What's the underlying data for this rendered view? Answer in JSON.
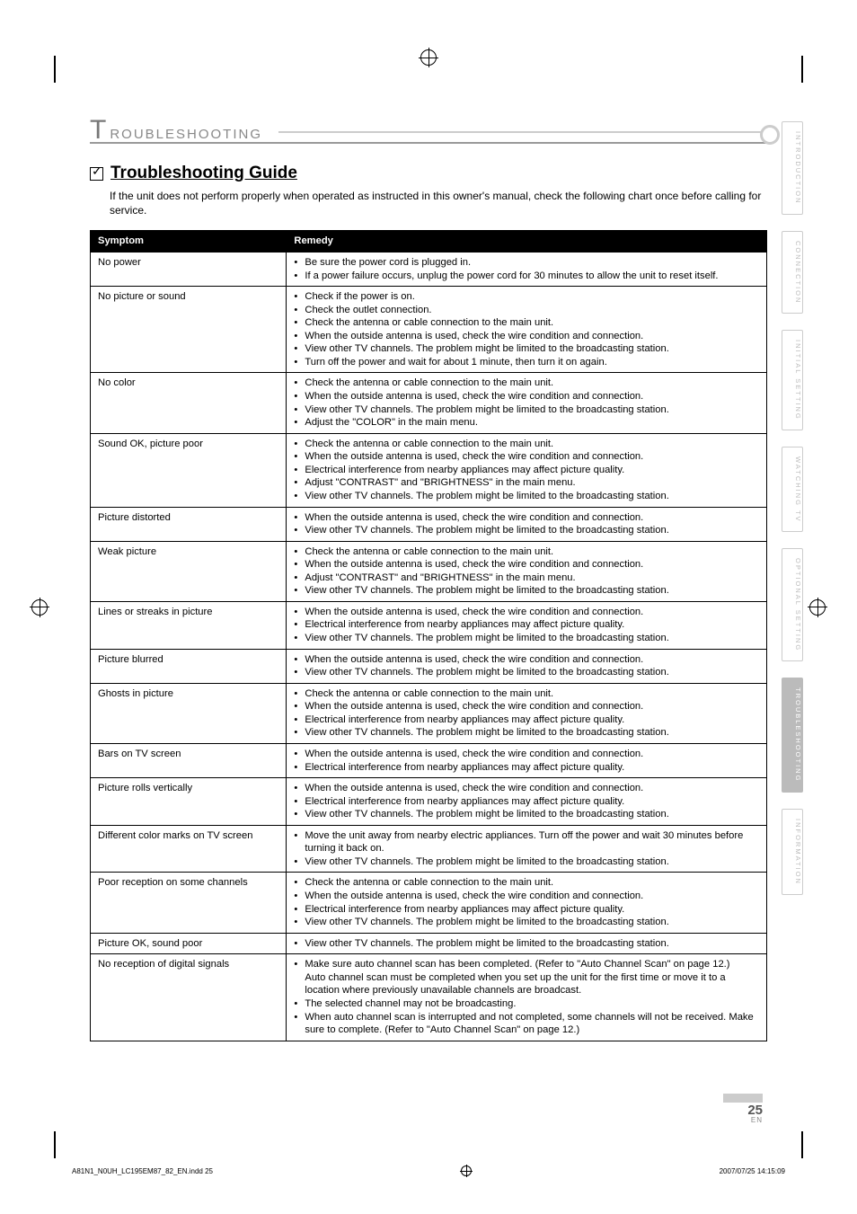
{
  "section_heading_first_letter": "T",
  "section_heading_rest": "ROUBLESHOOTING",
  "sub_heading": "Troubleshooting Guide",
  "intro": "If the unit does not perform properly when operated as instructed in this owner's manual, check the following chart once before calling for service.",
  "columns": {
    "symptom": "Symptom",
    "remedy": "Remedy"
  },
  "rows": [
    {
      "symptom": "No power",
      "remedy": [
        "Be sure the power cord is plugged in.",
        "If a power failure occurs, unplug the power cord for 30 minutes to allow the unit to reset itself."
      ]
    },
    {
      "symptom": "No picture or sound",
      "remedy": [
        "Check if the power is on.",
        "Check the outlet connection.",
        "Check the antenna or cable connection to the main unit.",
        "When the outside antenna is used, check the wire condition and connection.",
        "View other TV channels. The problem might be limited to the broadcasting station.",
        "Turn off the power and wait for about 1 minute, then turn it on again."
      ]
    },
    {
      "symptom": "No color",
      "remedy": [
        "Check the antenna or cable connection to the main unit.",
        "When the outside antenna is used, check the wire condition and connection.",
        "View other TV channels. The problem might be limited to the broadcasting station.",
        "Adjust the \"COLOR\" in the main menu."
      ]
    },
    {
      "symptom": "Sound OK, picture poor",
      "remedy": [
        "Check the antenna or cable connection to the main unit.",
        "When the outside antenna is used, check the wire condition and connection.",
        "Electrical interference from nearby appliances may affect picture quality.",
        "Adjust \"CONTRAST\" and \"BRIGHTNESS\" in the main menu.",
        "View other TV channels. The problem might be limited to the broadcasting station."
      ]
    },
    {
      "symptom": "Picture distorted",
      "remedy": [
        "When the outside antenna is used, check the wire condition and connection.",
        "View other TV channels. The problem might be limited to the broadcasting station."
      ]
    },
    {
      "symptom": "Weak picture",
      "remedy": [
        "Check the antenna or cable connection to the main unit.",
        "When the outside antenna is used, check the wire condition and connection.",
        "Adjust \"CONTRAST\" and \"BRIGHTNESS\" in the main menu.",
        "View other TV channels. The problem might be limited to the broadcasting station."
      ]
    },
    {
      "symptom": "Lines or streaks in picture",
      "remedy": [
        "When the outside antenna is used, check the wire condition and connection.",
        "Electrical interference from nearby appliances may affect picture quality.",
        "View other TV channels. The problem might be limited to the broadcasting station."
      ]
    },
    {
      "symptom": "Picture blurred",
      "remedy": [
        "When the outside antenna is used, check the wire condition and connection.",
        "View other TV channels. The problem might be limited to the broadcasting station."
      ]
    },
    {
      "symptom": "Ghosts in picture",
      "remedy": [
        "Check the antenna or cable connection to the main unit.",
        "When the outside antenna is used, check the wire condition and connection.",
        "Electrical interference from nearby appliances may affect picture quality.",
        "View other TV channels. The problem might be limited to the broadcasting station."
      ]
    },
    {
      "symptom": "Bars on TV screen",
      "remedy": [
        "When the outside antenna is used, check the wire condition and connection.",
        "Electrical interference from nearby appliances may affect picture quality."
      ]
    },
    {
      "symptom": "Picture rolls vertically",
      "remedy": [
        "When the outside antenna is used, check the wire condition and connection.",
        "Electrical interference from nearby appliances may affect picture quality.",
        "View other TV channels. The problem might be limited to the broadcasting station."
      ]
    },
    {
      "symptom": "Different color marks on TV screen",
      "remedy": [
        "Move the unit away from nearby electric appliances. Turn off the power and wait 30 minutes before turning it back on.",
        "View other TV channels. The problem might be limited to the broadcasting station."
      ]
    },
    {
      "symptom": "Poor reception on some channels",
      "remedy": [
        "Check the antenna or cable connection to the main unit.",
        "When the outside antenna is used, check the wire condition and connection.",
        "Electrical interference from nearby appliances may affect picture quality.",
        "View other TV channels. The problem might be limited to the broadcasting station."
      ]
    },
    {
      "symptom": "Picture OK, sound poor",
      "remedy": [
        "View other TV channels. The problem might be limited to the broadcasting station."
      ]
    },
    {
      "symptom": "No reception of digital signals",
      "remedy": [
        "Make sure auto channel scan has been completed. (Refer to \"Auto Channel Scan\" on page 12.)\nAuto channel scan must be completed when you set up the unit for the first time or move it to a location where previously unavailable channels are broadcast.",
        "The selected channel may not be broadcasting.",
        "When auto channel scan is interrupted and not completed, some channels will not be received. Make sure to complete. (Refer to \"Auto Channel Scan\" on page 12.)"
      ]
    }
  ],
  "tabs": [
    {
      "label": "INTRODUCTION",
      "active": false
    },
    {
      "label": "CONNECTION",
      "active": false
    },
    {
      "label": "INITIAL SETTING",
      "active": false
    },
    {
      "label": "WATCHING TV",
      "active": false
    },
    {
      "label": "OPTIONAL SETTING",
      "active": false
    },
    {
      "label": "TROUBLESHOOTING",
      "active": true
    },
    {
      "label": "INFORMATION",
      "active": false
    }
  ],
  "page_number": "25",
  "page_lang": "EN",
  "print_footer_left": "A81N1_N0UH_LC195EM87_82_EN.indd   25",
  "print_footer_right": "2007/07/25   14:15:09",
  "colors": {
    "heading_gray": "#888888",
    "tab_border": "#cccccc",
    "tab_active_bg": "#bbbbbb",
    "table_header_bg": "#000000",
    "table_header_fg": "#ffffff"
  }
}
